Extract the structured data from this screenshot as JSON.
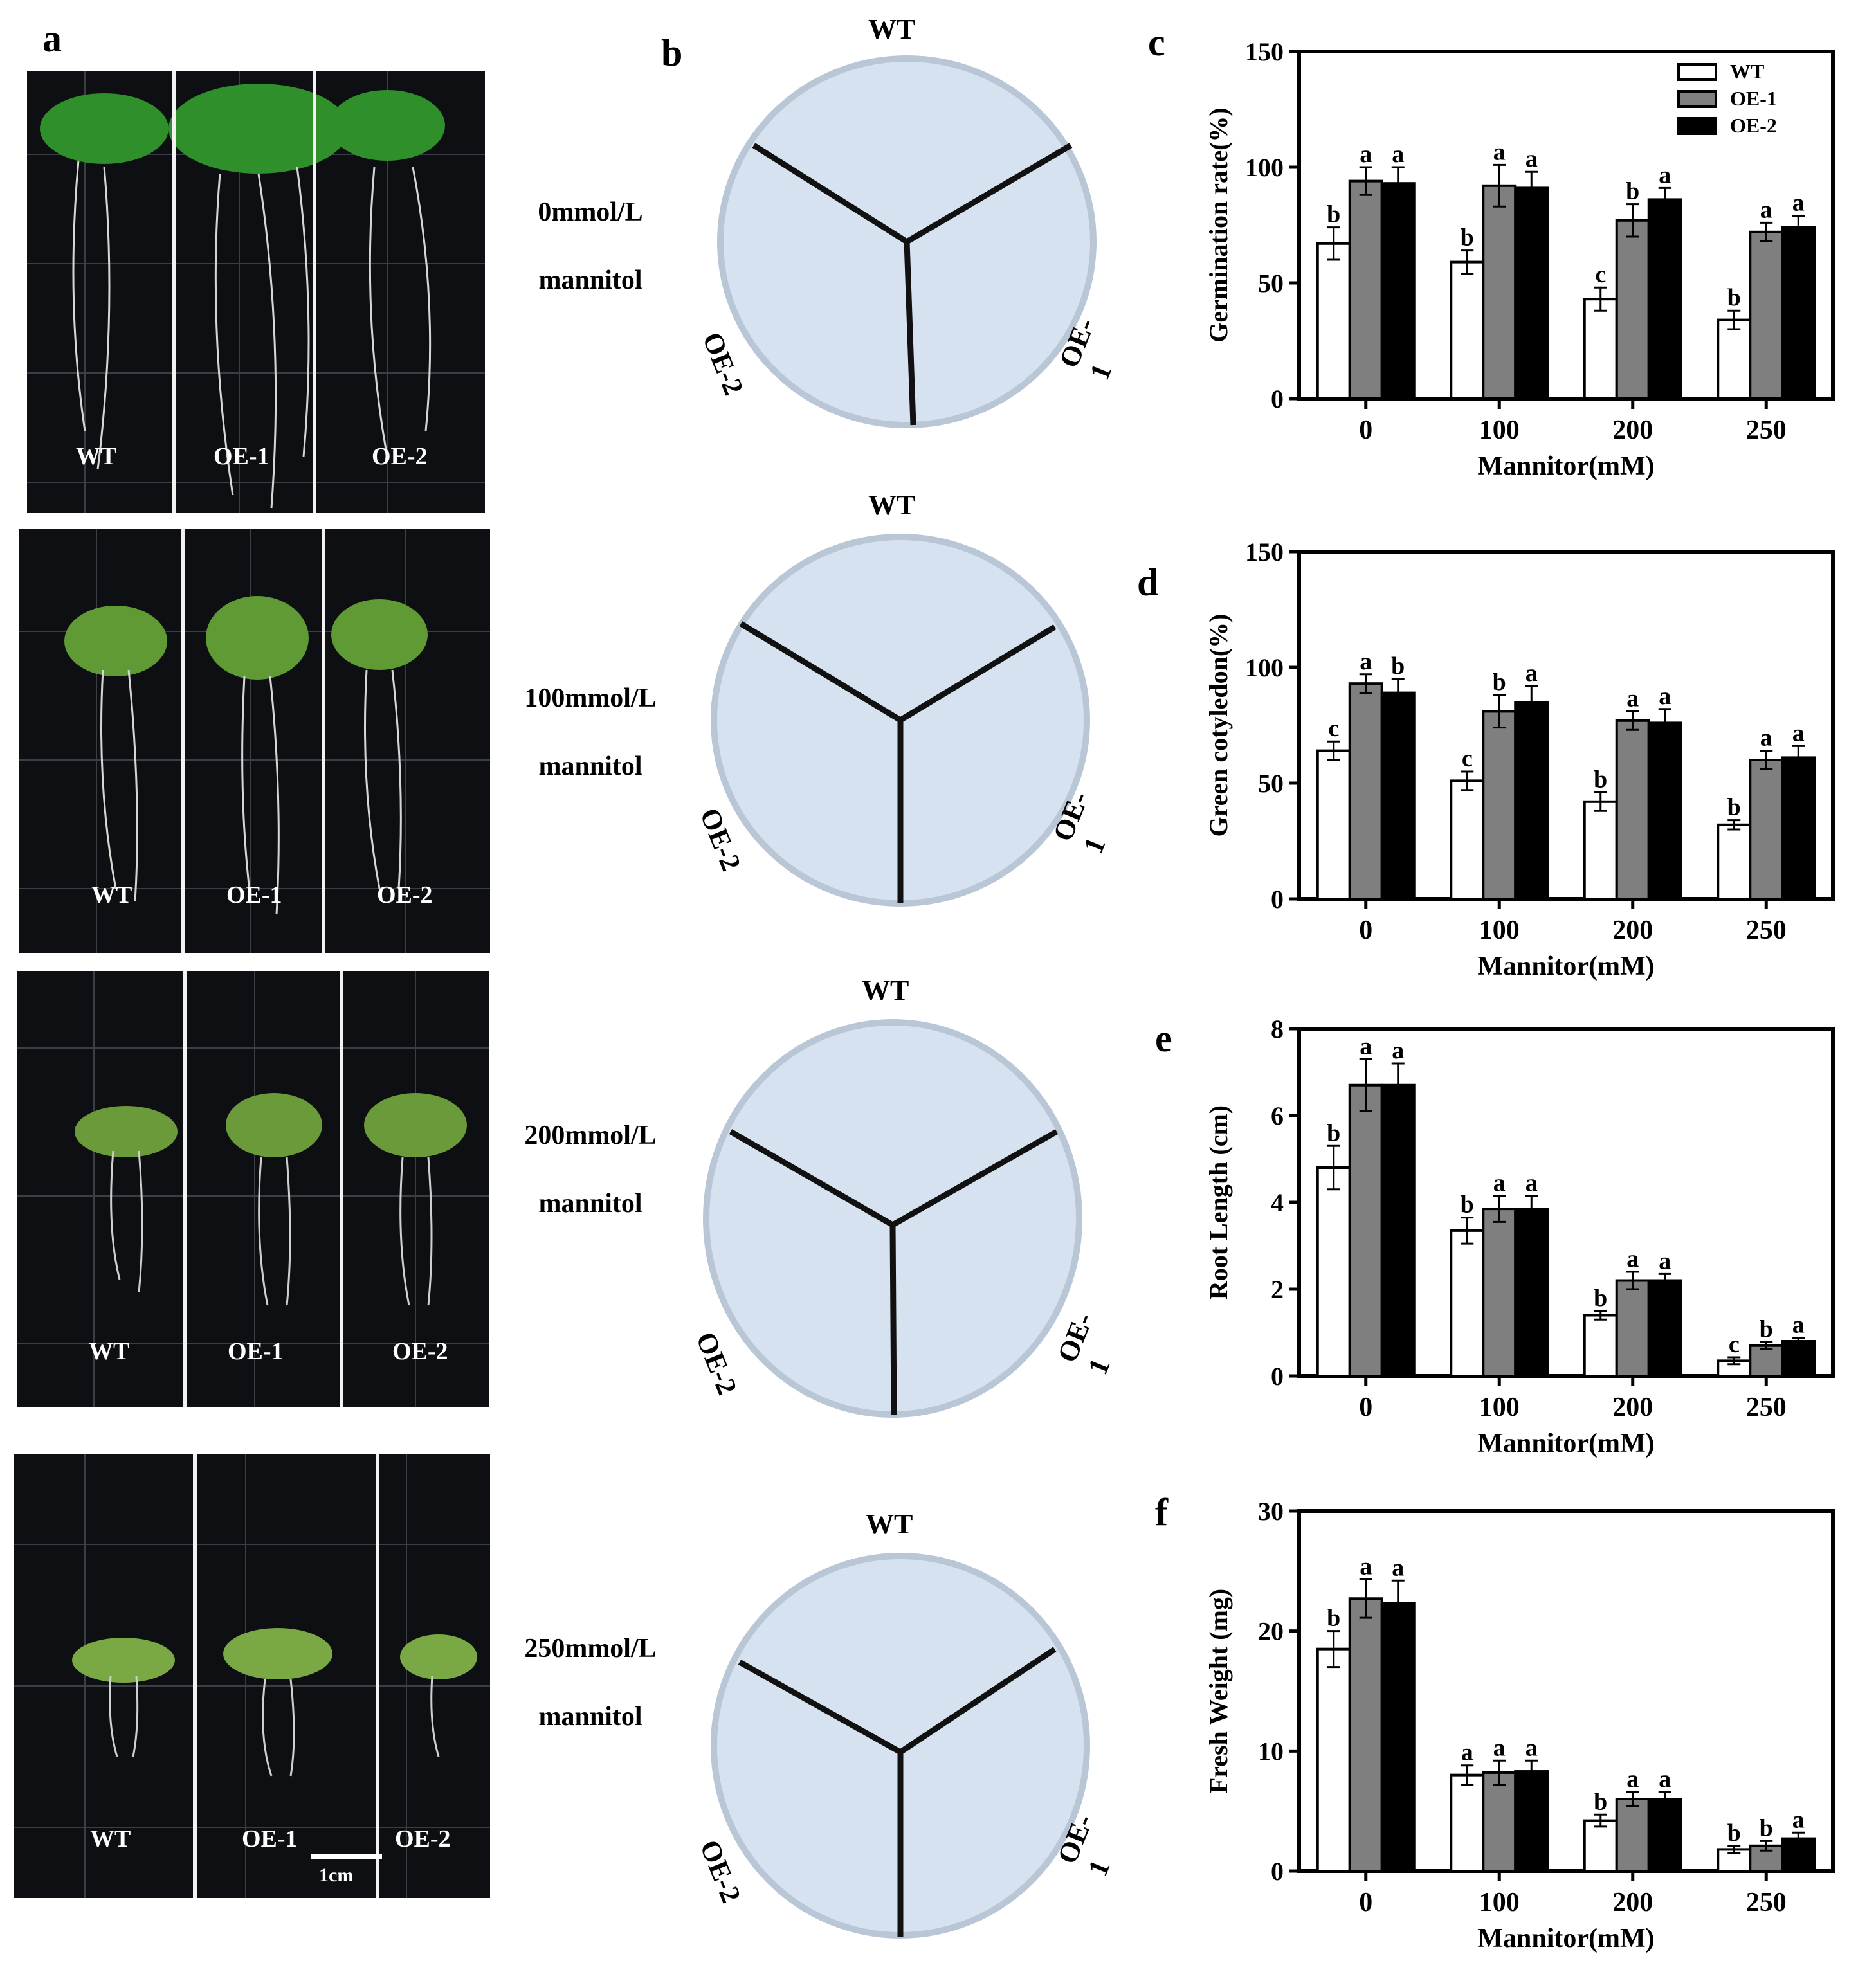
{
  "panel_labels": {
    "a": "a",
    "b": "b",
    "c": "c",
    "d": "d",
    "e": "e",
    "f": "f"
  },
  "genotypes": [
    "WT",
    "OE-1",
    "OE-2"
  ],
  "conditions": [
    {
      "conc": "0mmol/L",
      "agent": "mannitol"
    },
    {
      "conc": "100mmol/L",
      "agent": "mannitol"
    },
    {
      "conc": "200mmol/L",
      "agent": "mannitol"
    },
    {
      "conc": "250mmol/L",
      "agent": "mannitol"
    }
  ],
  "scale_bar_label": "1cm",
  "colors": {
    "WT": "#ffffff",
    "OE-1": "#7f7f7f",
    "OE-2": "#000000"
  },
  "chart_data": [
    {
      "panel": "c",
      "type": "bar",
      "categories": [
        "0",
        "100",
        "200",
        "250"
      ],
      "xlabel": "Mannitor(mM)",
      "ylabel": "Germination rate(%)",
      "ylim": [
        0,
        150
      ],
      "yticks": [
        0,
        50,
        100,
        150
      ],
      "legend": {
        "placement": "top-right",
        "entries": [
          "WT",
          "OE-1",
          "OE-2"
        ]
      },
      "series": [
        {
          "name": "WT",
          "values": [
            67,
            59,
            43,
            34
          ],
          "errors": [
            7,
            5,
            5,
            4
          ],
          "letters": [
            "b",
            "b",
            "c",
            "b"
          ]
        },
        {
          "name": "OE-1",
          "values": [
            94,
            92,
            77,
            72
          ],
          "errors": [
            6,
            9,
            7,
            4
          ],
          "letters": [
            "a",
            "a",
            "b",
            "a"
          ]
        },
        {
          "name": "OE-2",
          "values": [
            93,
            91,
            86,
            74
          ],
          "errors": [
            7,
            7,
            5,
            5
          ],
          "letters": [
            "a",
            "a",
            "a",
            "a"
          ]
        }
      ]
    },
    {
      "panel": "d",
      "type": "bar",
      "categories": [
        "0",
        "100",
        "200",
        "250"
      ],
      "xlabel": "Mannitor(mM)",
      "ylabel": "Green  cotyledon(%)",
      "ylim": [
        0,
        150
      ],
      "yticks": [
        0,
        50,
        100,
        150
      ],
      "series": [
        {
          "name": "WT",
          "values": [
            64,
            51,
            42,
            32
          ],
          "errors": [
            4,
            4,
            4,
            2
          ],
          "letters": [
            "c",
            "c",
            "b",
            "b"
          ]
        },
        {
          "name": "OE-1",
          "values": [
            93,
            81,
            77,
            60
          ],
          "errors": [
            4,
            7,
            4,
            4
          ],
          "letters": [
            "a",
            "b",
            "a",
            "a"
          ]
        },
        {
          "name": "OE-2",
          "values": [
            89,
            85,
            76,
            61
          ],
          "errors": [
            6,
            7,
            6,
            5
          ],
          "letters": [
            "b",
            "a",
            "a",
            "a"
          ]
        }
      ]
    },
    {
      "panel": "e",
      "type": "bar",
      "categories": [
        "0",
        "100",
        "200",
        "250"
      ],
      "xlabel": "Mannitor(mM)",
      "ylabel": "Root Length (cm)",
      "ylim": [
        0,
        8
      ],
      "yticks": [
        0,
        2,
        4,
        6,
        8
      ],
      "series": [
        {
          "name": "WT",
          "values": [
            4.8,
            3.35,
            1.4,
            0.35
          ],
          "errors": [
            0.5,
            0.3,
            0.1,
            0.08
          ],
          "letters": [
            "b",
            "b",
            "b",
            "c"
          ]
        },
        {
          "name": "OE-1",
          "values": [
            6.7,
            3.85,
            2.2,
            0.7
          ],
          "errors": [
            0.6,
            0.3,
            0.2,
            0.08
          ],
          "letters": [
            "a",
            "a",
            "a",
            "b"
          ]
        },
        {
          "name": "OE-2",
          "values": [
            6.7,
            3.85,
            2.2,
            0.8
          ],
          "errors": [
            0.5,
            0.3,
            0.15,
            0.08
          ],
          "letters": [
            "a",
            "a",
            "a",
            "a"
          ]
        }
      ]
    },
    {
      "panel": "f",
      "type": "bar",
      "categories": [
        "0",
        "100",
        "200",
        "250"
      ],
      "xlabel": "Mannitor(mM)",
      "ylabel": "Fresh Weight (mg)",
      "ylim": [
        0,
        30
      ],
      "yticks": [
        0,
        10,
        20,
        30
      ],
      "series": [
        {
          "name": "WT",
          "values": [
            18.5,
            8,
            4.2,
            1.8
          ],
          "errors": [
            1.5,
            0.8,
            0.5,
            0.3
          ],
          "letters": [
            "b",
            "a",
            "b",
            "b"
          ]
        },
        {
          "name": "OE-1",
          "values": [
            22.7,
            8.2,
            6,
            2.1
          ],
          "errors": [
            1.6,
            1,
            0.6,
            0.4
          ],
          "letters": [
            "a",
            "a",
            "a",
            "b"
          ]
        },
        {
          "name": "OE-2",
          "values": [
            22.3,
            8.3,
            6,
            2.7
          ],
          "errors": [
            1.9,
            0.9,
            0.6,
            0.5
          ],
          "letters": [
            "a",
            "a",
            "a",
            "a"
          ]
        }
      ]
    }
  ]
}
